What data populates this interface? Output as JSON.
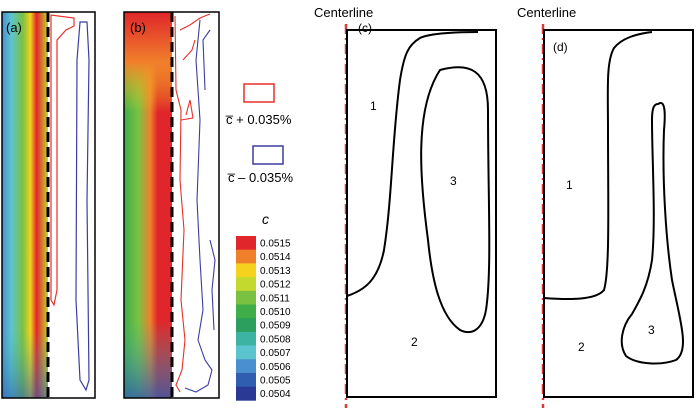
{
  "panels": {
    "a": "(a)",
    "b": "(b)",
    "c": "(c)",
    "d": "(d)"
  },
  "centerline_label": "Centerline",
  "region_labels": {
    "one": "1",
    "two": "2",
    "three": "3"
  },
  "contour_legend": {
    "plus": "c̅ + 0.035%",
    "minus": "c̅ – 0.035%",
    "plus_color": "#e8302a",
    "minus_color": "#3b3ea0"
  },
  "colorbar": {
    "title": "c",
    "entries": [
      {
        "value": "0.0515",
        "color": "#e0262b"
      },
      {
        "value": "0.0514",
        "color": "#f07f2b"
      },
      {
        "value": "0.0513",
        "color": "#f5d21e"
      },
      {
        "value": "0.0512",
        "color": "#c3d92d"
      },
      {
        "value": "0.0511",
        "color": "#7ac142"
      },
      {
        "value": "0.0510",
        "color": "#3fae48"
      },
      {
        "value": "0.0509",
        "color": "#2c9e5e"
      },
      {
        "value": "0.0508",
        "color": "#3db3a3"
      },
      {
        "value": "0.0507",
        "color": "#5cc4cf"
      },
      {
        "value": "0.0506",
        "color": "#4a8fd0"
      },
      {
        "value": "0.0505",
        "color": "#2f5db0"
      },
      {
        "value": "0.0504",
        "color": "#2a3a94"
      }
    ]
  }
}
